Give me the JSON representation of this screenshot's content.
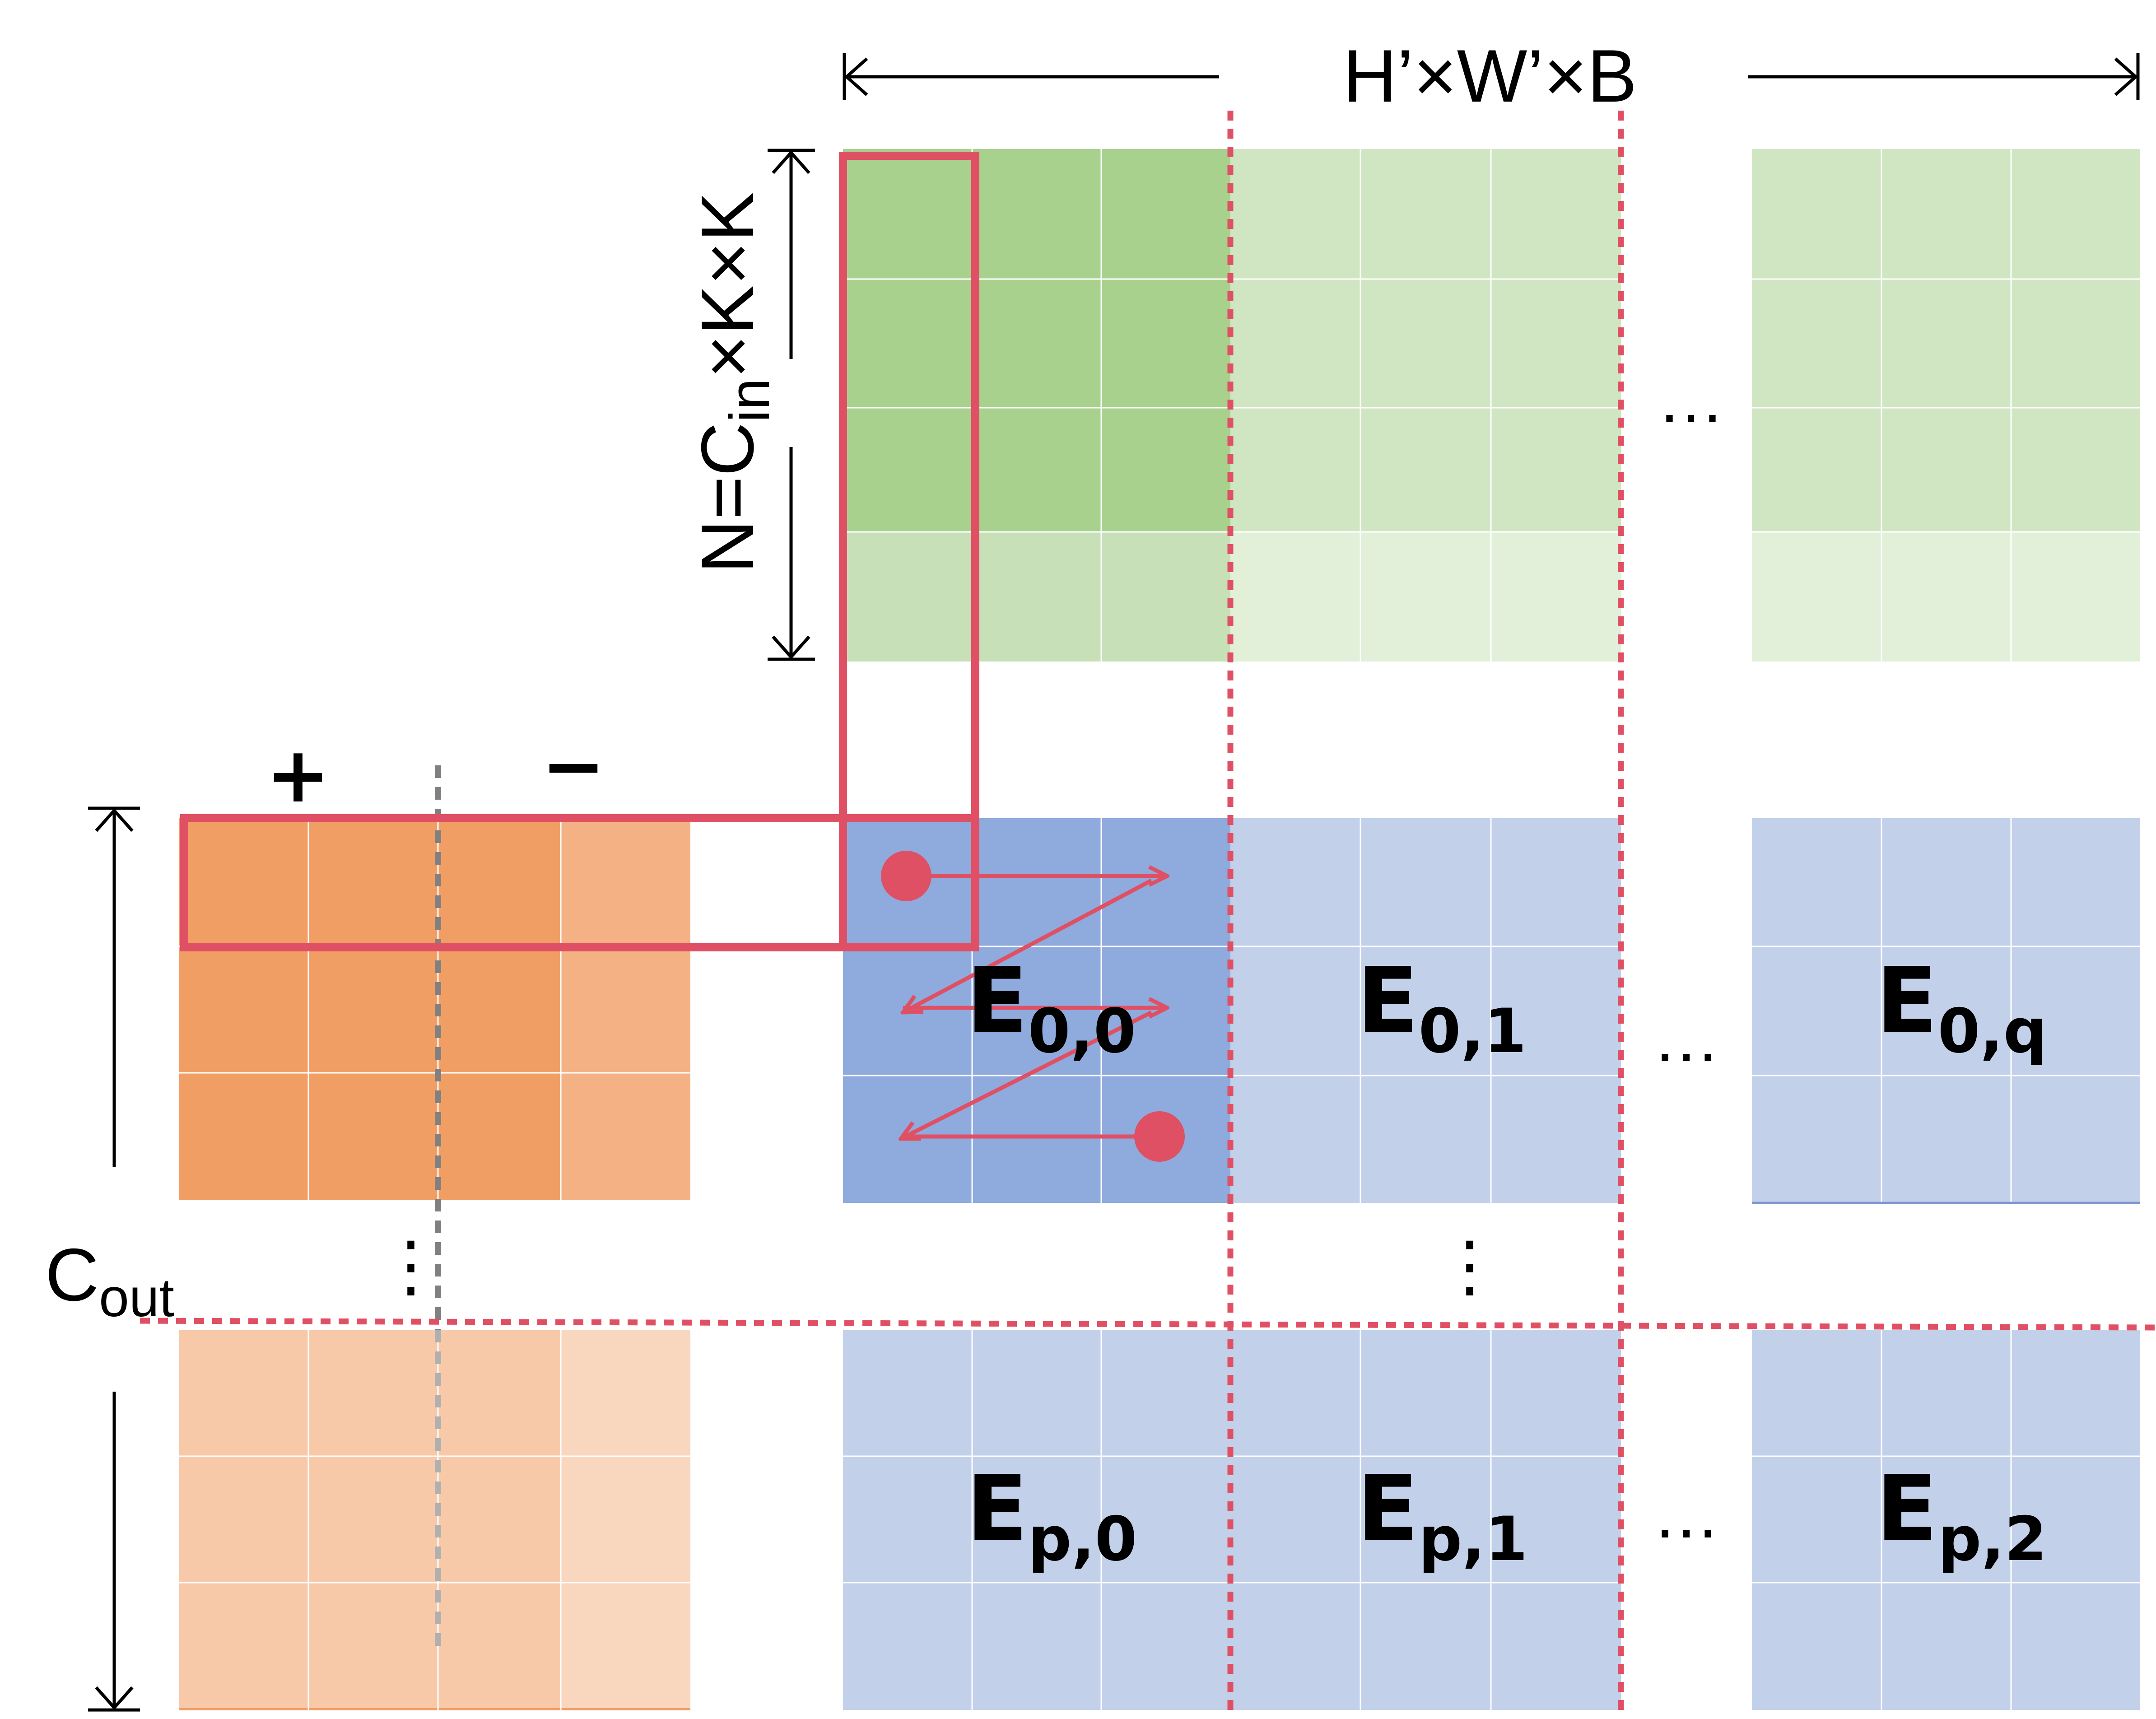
{
  "labels": {
    "width_dim": "H’×W’×B",
    "height_dim_prefix": "N=C",
    "height_dim_sub": "in",
    "height_dim_suffix": "×K×K",
    "cout_main": "C",
    "cout_sub": "out",
    "plus": "+",
    "minus": "−",
    "ellipsis_h": "…",
    "ellipsis_v": "⋮"
  },
  "output_blocks": {
    "top": [
      {
        "main": "E",
        "sub": "0,0"
      },
      {
        "main": "E",
        "sub": "0,1"
      },
      {
        "main": "E",
        "sub": "0,q"
      }
    ],
    "bottom": [
      {
        "main": "E",
        "sub": "p,0"
      },
      {
        "main": "E",
        "sub": "p,1"
      },
      {
        "main": "E",
        "sub": "p,2"
      }
    ]
  },
  "colors": {
    "green_dark": "#a9d18e",
    "green_light": "#d0e6c3",
    "green_lighter": "#e2f0d9",
    "green_bottom_dark": "#c7e0b7",
    "blue_dark": "#8faadc",
    "blue_light": "#c2d0ea",
    "orange_dark": "#f19e65",
    "orange_mid": "#f4b183",
    "orange_light": "#f7c9a9",
    "orange_lighter": "#f9d7bf",
    "highlight": "#e05064",
    "gray_dash": "#808080"
  }
}
